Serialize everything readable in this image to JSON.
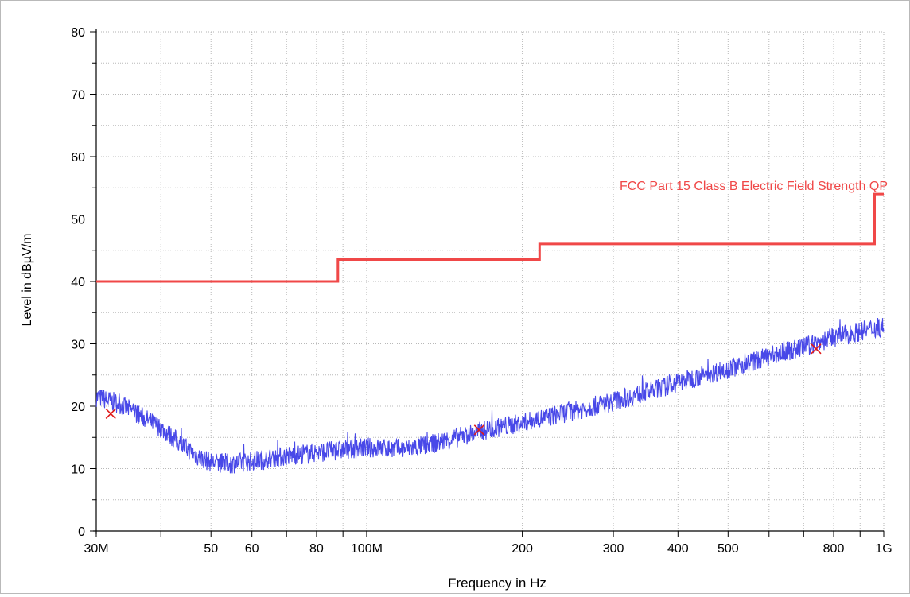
{
  "chart_data": {
    "type": "line",
    "xlabel": "Frequency in Hz",
    "ylabel": "Level in dBµV/m",
    "x_scale": "log",
    "xlim": [
      30000000,
      1000000000
    ],
    "ylim": [
      0,
      80
    ],
    "grid": true,
    "x_ticks": [
      {
        "value": 30000000,
        "label": "30M"
      },
      {
        "value": 50000000,
        "label": "50"
      },
      {
        "value": 60000000,
        "label": "60"
      },
      {
        "value": 80000000,
        "label": "80"
      },
      {
        "value": 100000000,
        "label": "100M"
      },
      {
        "value": 200000000,
        "label": "200"
      },
      {
        "value": 300000000,
        "label": "300"
      },
      {
        "value": 400000000,
        "label": "400"
      },
      {
        "value": 500000000,
        "label": "500"
      },
      {
        "value": 800000000,
        "label": "800"
      },
      {
        "value": 1000000000,
        "label": "1G"
      }
    ],
    "x_minor_ticks": [
      40000000,
      70000000,
      90000000,
      600000000,
      700000000,
      900000000
    ],
    "y_ticks": [
      0,
      10,
      20,
      30,
      40,
      50,
      60,
      70,
      80
    ],
    "limit_line": {
      "label": "FCC Part 15 Class B Electric Field Strength QP",
      "color": "#f04848",
      "x": [
        30000000,
        88000000,
        88000000,
        216000000,
        216000000,
        960000000,
        960000000,
        1000000000
      ],
      "y": [
        40,
        40,
        43.5,
        43.5,
        46,
        46,
        54,
        54
      ]
    },
    "trace": {
      "color": "#4848e8",
      "x": [
        30000000,
        33000000,
        36000000,
        40000000,
        44000000,
        47000000,
        50000000,
        55000000,
        60000000,
        70000000,
        80000000,
        90000000,
        100000000,
        110000000,
        120000000,
        135000000,
        150000000,
        170000000,
        200000000,
        230000000,
        260000000,
        300000000,
        350000000,
        400000000,
        450000000,
        500000000,
        550000000,
        600000000,
        700000000,
        750000000,
        800000000,
        900000000,
        1000000000
      ],
      "y": [
        21.5,
        20.5,
        18.8,
        16.5,
        13.8,
        12.0,
        11.0,
        10.8,
        11.2,
        12.0,
        12.6,
        13.0,
        13.4,
        13.2,
        13.2,
        14.0,
        15.0,
        16.2,
        17.3,
        18.5,
        19.5,
        20.8,
        22.3,
        23.8,
        25.0,
        26.0,
        27.0,
        28.0,
        29.5,
        30.3,
        31.0,
        32.0,
        32.8
      ]
    },
    "markers": {
      "color": "#e01818",
      "points": [
        {
          "x": 32000000,
          "y": 18.8
        },
        {
          "x": 165000000,
          "y": 16.2
        },
        {
          "x": 740000000,
          "y": 29.2
        }
      ]
    }
  }
}
